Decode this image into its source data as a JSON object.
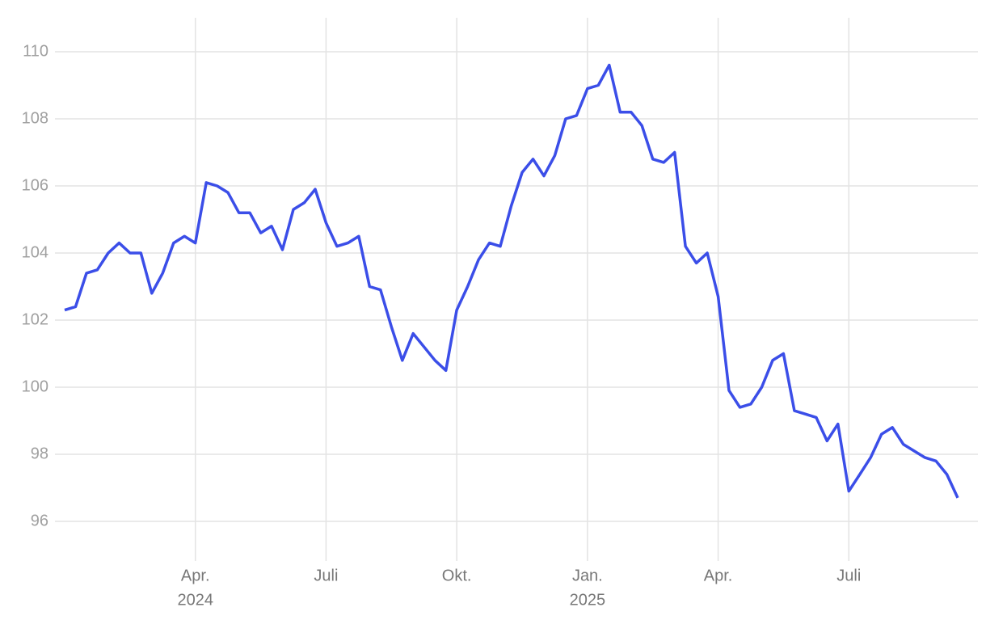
{
  "chart_data": {
    "type": "line",
    "x": [
      "2024-01",
      "2024-01",
      "2024-01",
      "2024-01",
      "2024-02",
      "2024-02",
      "2024-02",
      "2024-02",
      "2024-03",
      "2024-03",
      "2024-03",
      "2024-03",
      "2024-04",
      "2024-04",
      "2024-04",
      "2024-04",
      "2024-05",
      "2024-05",
      "2024-05",
      "2024-05",
      "2024-06",
      "2024-06",
      "2024-06",
      "2024-06",
      "2024-07",
      "2024-07",
      "2024-07",
      "2024-07",
      "2024-08",
      "2024-08",
      "2024-08",
      "2024-08",
      "2024-09",
      "2024-09",
      "2024-09",
      "2024-09",
      "2024-10",
      "2024-10",
      "2024-10",
      "2024-10",
      "2024-11",
      "2024-11",
      "2024-11",
      "2024-11",
      "2024-12",
      "2024-12",
      "2024-12",
      "2024-12",
      "2025-01",
      "2025-01",
      "2025-01",
      "2025-01",
      "2025-02",
      "2025-02",
      "2025-02",
      "2025-02",
      "2025-03",
      "2025-03",
      "2025-03",
      "2025-03",
      "2025-04",
      "2025-04",
      "2025-04",
      "2025-04",
      "2025-05",
      "2025-05",
      "2025-05",
      "2025-05",
      "2025-06",
      "2025-06",
      "2025-06",
      "2025-06",
      "2025-07",
      "2025-07",
      "2025-07",
      "2025-07",
      "2025-08",
      "2025-08",
      "2025-08",
      "2025-08",
      "2025-09",
      "2025-09",
      "2025-09"
    ],
    "series": [
      {
        "color": "#3b4ee8",
        "values": [
          102.3,
          102.4,
          103.4,
          103.5,
          104.0,
          104.3,
          104.0,
          104.0,
          102.8,
          103.4,
          104.3,
          104.5,
          104.3,
          106.1,
          106.0,
          105.8,
          105.2,
          105.2,
          104.6,
          104.8,
          104.1,
          105.3,
          105.5,
          105.9,
          104.9,
          104.2,
          104.3,
          104.5,
          103.0,
          102.9,
          101.8,
          100.8,
          101.6,
          101.2,
          100.8,
          100.5,
          102.3,
          103.0,
          103.8,
          104.3,
          104.2,
          105.4,
          106.4,
          106.8,
          106.3,
          106.9,
          108.0,
          108.1,
          108.9,
          109.0,
          109.6,
          108.2,
          108.2,
          107.8,
          106.8,
          106.7,
          107.0,
          104.2,
          103.7,
          104.0,
          102.7,
          99.9,
          99.4,
          99.5,
          100.0,
          100.8,
          101.0,
          99.3,
          99.2,
          99.1,
          98.4,
          98.9,
          96.9,
          97.4,
          97.9,
          98.6,
          98.8,
          98.3,
          98.1,
          97.9,
          97.8,
          97.4,
          96.7
        ]
      }
    ],
    "xlim": [
      "2024-01",
      "2025-10"
    ],
    "xticks": [
      {
        "value": "2024-04",
        "label": "Apr.",
        "year": "2024"
      },
      {
        "value": "2024-07",
        "label": "Juli"
      },
      {
        "value": "2024-10",
        "label": "Okt."
      },
      {
        "value": "2025-01",
        "label": "Jan.",
        "year": "2025"
      },
      {
        "value": "2025-04",
        "label": "Apr."
      },
      {
        "value": "2025-07",
        "label": "Juli"
      }
    ],
    "ylim": [
      95,
      111
    ],
    "yticks": [
      96,
      98,
      100,
      102,
      104,
      106,
      108,
      110
    ],
    "grid": true
  }
}
